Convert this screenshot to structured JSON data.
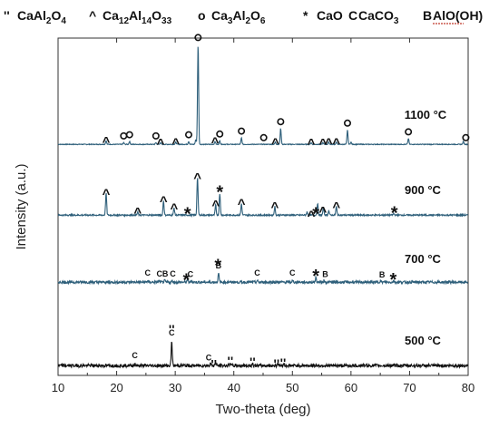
{
  "legend": [
    {
      "symbol": "''",
      "formula": [
        [
          "CaAl",
          ""
        ],
        [
          "2",
          "sub"
        ],
        [
          "O",
          ""
        ],
        [
          "4",
          "sub"
        ]
      ]
    },
    {
      "symbol": "^",
      "formula": [
        [
          "Ca",
          ""
        ],
        [
          "12",
          "sub"
        ],
        [
          "Al",
          ""
        ],
        [
          "14",
          "sub"
        ],
        [
          "O",
          ""
        ],
        [
          "33",
          "sub"
        ]
      ]
    },
    {
      "symbol": "o",
      "formula": [
        [
          "Ca",
          ""
        ],
        [
          "3",
          "sub"
        ],
        [
          "Al",
          ""
        ],
        [
          "2",
          "sub"
        ],
        [
          "O",
          ""
        ],
        [
          "6",
          "sub"
        ]
      ]
    },
    {
      "symbol": "*",
      "formula": [
        [
          "CaO",
          ""
        ]
      ]
    },
    {
      "symbol": "C",
      "formula": [
        [
          "CaCO",
          ""
        ],
        [
          "3",
          "sub"
        ]
      ]
    },
    {
      "symbol": "B",
      "formula": [
        [
          "AlO(OH)",
          ""
        ]
      ]
    }
  ],
  "chart_data": {
    "type": "line",
    "title": "",
    "xlabel": "Two-theta (deg)",
    "ylabel": "Intensity (a.u.)",
    "xlim": [
      10,
      80
    ],
    "xticks": [
      10,
      20,
      30,
      40,
      50,
      60,
      70,
      80
    ],
    "grid": false,
    "series": [
      {
        "name": "1100 °C",
        "color": "#2e5f7a",
        "baseline": 0.5,
        "noise": 0.25,
        "peaks": [
          [
            18.2,
            2.5
          ],
          [
            21.2,
            1.2
          ],
          [
            22.2,
            2
          ],
          [
            26.7,
            1.2
          ],
          [
            27.5,
            1.2
          ],
          [
            30.1,
            1.5
          ],
          [
            32.3,
            2
          ],
          [
            33.5,
            3
          ],
          [
            33.9,
            69
          ],
          [
            36.8,
            2
          ],
          [
            37.6,
            2.5
          ],
          [
            41.3,
            4.5
          ],
          [
            47.1,
            1.5
          ],
          [
            48.0,
            11
          ],
          [
            53.2,
            1.2
          ],
          [
            55.2,
            1.2
          ],
          [
            56.2,
            1.5
          ],
          [
            57.5,
            1.5
          ],
          [
            59.4,
            10
          ],
          [
            60.0,
            1.5
          ],
          [
            69.8,
            4
          ],
          [
            79.2,
            2
          ]
        ],
        "markers": [
          [
            18.2,
            "^"
          ],
          [
            21.2,
            "o"
          ],
          [
            22.2,
            "o"
          ],
          [
            26.7,
            "o"
          ],
          [
            27.5,
            "^"
          ],
          [
            30.1,
            "^"
          ],
          [
            32.3,
            "o"
          ],
          [
            33.9,
            "o"
          ],
          [
            36.8,
            "^"
          ],
          [
            37.6,
            "o"
          ],
          [
            41.3,
            "o"
          ],
          [
            45.1,
            "o"
          ],
          [
            47.1,
            "^"
          ],
          [
            48.0,
            "o"
          ],
          [
            53.2,
            "^"
          ],
          [
            55.2,
            "^"
          ],
          [
            56.2,
            "^"
          ],
          [
            57.5,
            "^"
          ],
          [
            59.4,
            "o"
          ],
          [
            69.8,
            "o"
          ],
          [
            79.6,
            "o"
          ]
        ]
      },
      {
        "name": "900 °C",
        "color": "#2e5f7a",
        "baseline": 0.5,
        "noise": 0.5,
        "peaks": [
          [
            18.2,
            15
          ],
          [
            23.6,
            2
          ],
          [
            28.0,
            10
          ],
          [
            29.8,
            5
          ],
          [
            33.8,
            26
          ],
          [
            36.9,
            7
          ],
          [
            37.6,
            15
          ],
          [
            41.3,
            8
          ],
          [
            47.0,
            6
          ],
          [
            52.5,
            2
          ],
          [
            54.3,
            8
          ],
          [
            55.3,
            5
          ],
          [
            56.2,
            3
          ],
          [
            57.5,
            6
          ],
          [
            67.3,
            1
          ]
        ],
        "markers": [
          [
            18.2,
            "^"
          ],
          [
            23.6,
            "^"
          ],
          [
            28.0,
            "^"
          ],
          [
            29.8,
            "^"
          ],
          [
            32.1,
            "*"
          ],
          [
            33.8,
            "^"
          ],
          [
            36.9,
            "^"
          ],
          [
            37.6,
            "*"
          ],
          [
            41.3,
            "^"
          ],
          [
            47.0,
            "^"
          ],
          [
            53.2,
            "^"
          ],
          [
            54.0,
            "*"
          ],
          [
            55.2,
            "^"
          ],
          [
            57.5,
            "^"
          ],
          [
            67.4,
            "*"
          ]
        ]
      },
      {
        "name": "700 °C",
        "color": "#2e5f7a",
        "baseline": 0.5,
        "noise": 0.9,
        "peaks": [
          [
            25.3,
            1
          ],
          [
            27.2,
            1
          ],
          [
            28.2,
            1
          ],
          [
            29.5,
            1
          ],
          [
            32.1,
            2
          ],
          [
            32.8,
            1
          ],
          [
            37.4,
            6
          ],
          [
            44.0,
            1
          ],
          [
            50.0,
            1
          ],
          [
            54.0,
            3
          ],
          [
            55.4,
            1
          ],
          [
            65.0,
            1
          ],
          [
            67.3,
            1
          ]
        ],
        "markers": [
          [
            25.3,
            "C"
          ],
          [
            27.3,
            "C"
          ],
          [
            28.3,
            "B"
          ],
          [
            29.6,
            "C"
          ],
          [
            31.9,
            "*"
          ],
          [
            32.6,
            "C"
          ],
          [
            37.4,
            "B"
          ],
          [
            37.3,
            "*"
          ],
          [
            44.0,
            "C"
          ],
          [
            50.0,
            "C"
          ],
          [
            54.0,
            "*"
          ],
          [
            55.6,
            "B"
          ],
          [
            65.3,
            "B"
          ],
          [
            67.2,
            "*"
          ]
        ]
      },
      {
        "name": "500 °C",
        "color": "#111111",
        "baseline": 0.5,
        "noise": 1.1,
        "peaks": [
          [
            23.1,
            1.5
          ],
          [
            29.4,
            17
          ],
          [
            36.0,
            2
          ],
          [
            36.9,
            2
          ],
          [
            39.4,
            2
          ],
          [
            43.2,
            1.5
          ],
          [
            47.5,
            2
          ],
          [
            48.5,
            1.5
          ]
        ],
        "markers": [
          [
            23.1,
            "C"
          ],
          [
            29.4,
            "C"
          ],
          [
            29.4,
            "''"
          ],
          [
            35.7,
            "C"
          ],
          [
            36.6,
            "''"
          ],
          [
            39.4,
            "''"
          ],
          [
            43.2,
            "''"
          ],
          [
            47.3,
            "''"
          ],
          [
            48.4,
            "''"
          ]
        ]
      }
    ]
  }
}
